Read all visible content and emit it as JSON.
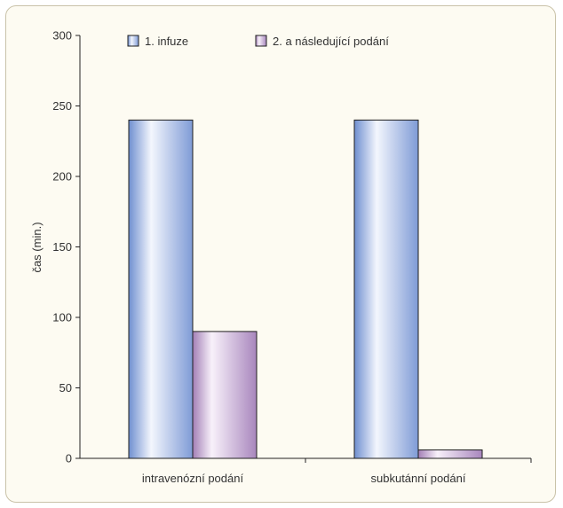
{
  "chart_data": {
    "type": "bar",
    "title": "",
    "xlabel": "",
    "ylabel": "čas (min.)",
    "ylim": [
      0,
      300
    ],
    "yticks": [
      0,
      50,
      100,
      150,
      200,
      250,
      300
    ],
    "categories": [
      "intravenózní podání",
      "subkutánní podání"
    ],
    "series": [
      {
        "name": "1. infuze",
        "values": [
          240,
          240
        ],
        "color": "#8aa3d8"
      },
      {
        "name": "2. a následující podání",
        "values": [
          90,
          6
        ],
        "color": "#b99ac6"
      }
    ],
    "grid": false,
    "legend_position": "top"
  }
}
